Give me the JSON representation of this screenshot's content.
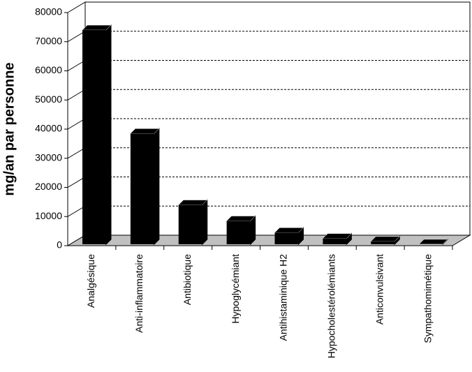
{
  "chart_data": {
    "type": "bar",
    "y_label": "mg/an par personne",
    "categories": [
      "Analgésique",
      "Anti-inflammatoire",
      "Antibiotique",
      "Hypoglycémiant",
      "Antihistaminique H2",
      "Hypocholestérolémiants",
      "Anticonvulsivant",
      "Sympathomimétique"
    ],
    "values": [
      74000,
      38500,
      14000,
      8500,
      4500,
      2500,
      1500,
      500
    ],
    "color": "#000000",
    "ylim": [
      0,
      80000
    ],
    "yticks": [
      0,
      10000,
      20000,
      30000,
      40000,
      50000,
      60000,
      70000,
      80000
    ],
    "grid": true
  }
}
